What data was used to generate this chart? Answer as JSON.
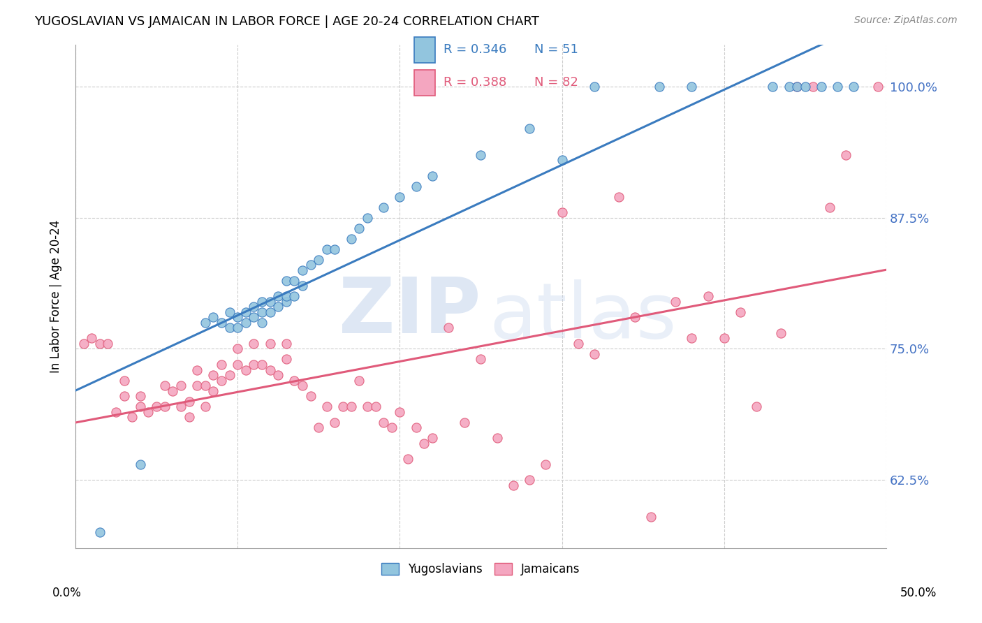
{
  "title": "YUGOSLAVIAN VS JAMAICAN IN LABOR FORCE | AGE 20-24 CORRELATION CHART",
  "source": "Source: ZipAtlas.com",
  "ylabel": "In Labor Force | Age 20-24",
  "ytick_values": [
    1.0,
    0.875,
    0.75,
    0.625
  ],
  "ytick_labels": [
    "100.0%",
    "87.5%",
    "75.0%",
    "62.5%"
  ],
  "xlim": [
    0.0,
    0.5
  ],
  "ylim": [
    0.56,
    1.04
  ],
  "blue_R": 0.346,
  "blue_N": 51,
  "pink_R": 0.388,
  "pink_N": 82,
  "blue_color": "#92c5de",
  "pink_color": "#f4a6c0",
  "blue_line_color": "#3a7bbf",
  "pink_line_color": "#e05a7a",
  "legend_label_blue": "Yugoslavians",
  "legend_label_pink": "Jamaicans",
  "blue_scatter_x": [
    0.015,
    0.04,
    0.08,
    0.085,
    0.09,
    0.095,
    0.095,
    0.1,
    0.1,
    0.105,
    0.105,
    0.11,
    0.11,
    0.115,
    0.115,
    0.115,
    0.12,
    0.12,
    0.125,
    0.125,
    0.13,
    0.13,
    0.13,
    0.135,
    0.135,
    0.14,
    0.14,
    0.145,
    0.15,
    0.155,
    0.16,
    0.17,
    0.175,
    0.18,
    0.19,
    0.2,
    0.21,
    0.22,
    0.25,
    0.28,
    0.3,
    0.32,
    0.36,
    0.38,
    0.43,
    0.44,
    0.445,
    0.45,
    0.46,
    0.47,
    0.48
  ],
  "blue_scatter_y": [
    0.575,
    0.64,
    0.775,
    0.78,
    0.775,
    0.77,
    0.785,
    0.77,
    0.78,
    0.775,
    0.785,
    0.78,
    0.79,
    0.775,
    0.785,
    0.795,
    0.785,
    0.795,
    0.79,
    0.8,
    0.795,
    0.8,
    0.815,
    0.8,
    0.815,
    0.81,
    0.825,
    0.83,
    0.835,
    0.845,
    0.845,
    0.855,
    0.865,
    0.875,
    0.885,
    0.895,
    0.905,
    0.915,
    0.935,
    0.96,
    0.93,
    1.0,
    1.0,
    1.0,
    1.0,
    1.0,
    1.0,
    1.0,
    1.0,
    1.0,
    1.0
  ],
  "pink_scatter_x": [
    0.005,
    0.01,
    0.015,
    0.02,
    0.025,
    0.03,
    0.03,
    0.035,
    0.04,
    0.04,
    0.045,
    0.05,
    0.055,
    0.055,
    0.06,
    0.065,
    0.065,
    0.07,
    0.07,
    0.075,
    0.075,
    0.08,
    0.08,
    0.085,
    0.085,
    0.09,
    0.09,
    0.095,
    0.1,
    0.1,
    0.105,
    0.11,
    0.11,
    0.115,
    0.12,
    0.12,
    0.125,
    0.13,
    0.13,
    0.135,
    0.14,
    0.145,
    0.15,
    0.155,
    0.16,
    0.165,
    0.17,
    0.175,
    0.18,
    0.185,
    0.19,
    0.195,
    0.2,
    0.205,
    0.21,
    0.215,
    0.22,
    0.23,
    0.24,
    0.25,
    0.26,
    0.27,
    0.28,
    0.29,
    0.3,
    0.31,
    0.32,
    0.335,
    0.345,
    0.355,
    0.37,
    0.38,
    0.39,
    0.4,
    0.41,
    0.42,
    0.435,
    0.445,
    0.455,
    0.465,
    0.475,
    0.495
  ],
  "pink_scatter_y": [
    0.755,
    0.76,
    0.755,
    0.755,
    0.69,
    0.705,
    0.72,
    0.685,
    0.695,
    0.705,
    0.69,
    0.695,
    0.695,
    0.715,
    0.71,
    0.695,
    0.715,
    0.685,
    0.7,
    0.715,
    0.73,
    0.695,
    0.715,
    0.71,
    0.725,
    0.72,
    0.735,
    0.725,
    0.735,
    0.75,
    0.73,
    0.735,
    0.755,
    0.735,
    0.73,
    0.755,
    0.725,
    0.74,
    0.755,
    0.72,
    0.715,
    0.705,
    0.675,
    0.695,
    0.68,
    0.695,
    0.695,
    0.72,
    0.695,
    0.695,
    0.68,
    0.675,
    0.69,
    0.645,
    0.675,
    0.66,
    0.665,
    0.77,
    0.68,
    0.74,
    0.665,
    0.62,
    0.625,
    0.64,
    0.88,
    0.755,
    0.745,
    0.895,
    0.78,
    0.59,
    0.795,
    0.76,
    0.8,
    0.76,
    0.785,
    0.695,
    0.765,
    1.0,
    1.0,
    0.885,
    0.935,
    1.0
  ]
}
